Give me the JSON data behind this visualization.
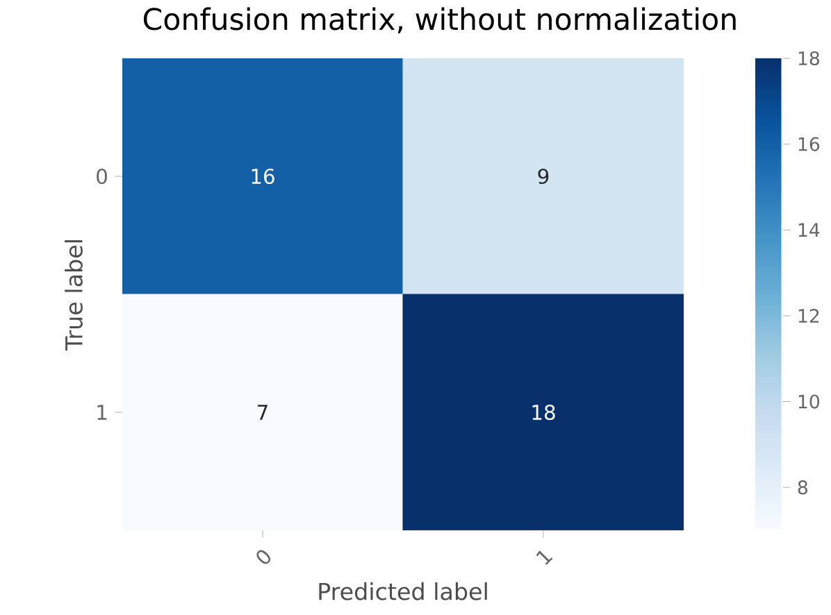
{
  "chart_data": {
    "type": "heatmap",
    "title": "Confusion matrix, without normalization",
    "xlabel": "Predicted label",
    "ylabel": "True label",
    "categories": [
      "0",
      "1"
    ],
    "y_categories": [
      "0",
      "1"
    ],
    "cells": [
      [
        16,
        9
      ],
      [
        7,
        18
      ]
    ],
    "clim": [
      7,
      18
    ],
    "cticks": [
      8,
      10,
      12,
      14,
      16,
      18
    ],
    "data_labels": true
  }
}
